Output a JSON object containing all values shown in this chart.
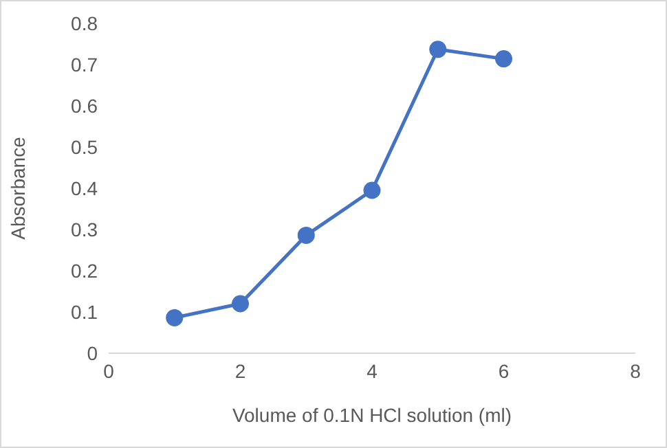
{
  "chart_data": {
    "type": "line",
    "xlabel": "Volume of 0.1N HCl solution (ml)",
    "ylabel": "Absorbance",
    "x": [
      1,
      2,
      3,
      4,
      5,
      6
    ],
    "series": [
      {
        "color": "#4472c4",
        "values": [
          0.086,
          0.12,
          0.286,
          0.395,
          0.737,
          0.714
        ]
      }
    ],
    "xlim": [
      0,
      8
    ],
    "xticks": [
      0,
      2,
      4,
      6,
      8
    ],
    "ylim": [
      0,
      0.8
    ],
    "yticks": [
      0,
      0.1,
      0.2,
      0.3,
      0.4,
      0.5,
      0.6,
      0.7,
      0.8
    ],
    "grid": false,
    "legend": false,
    "marker": "circle",
    "line_style": "solid"
  }
}
